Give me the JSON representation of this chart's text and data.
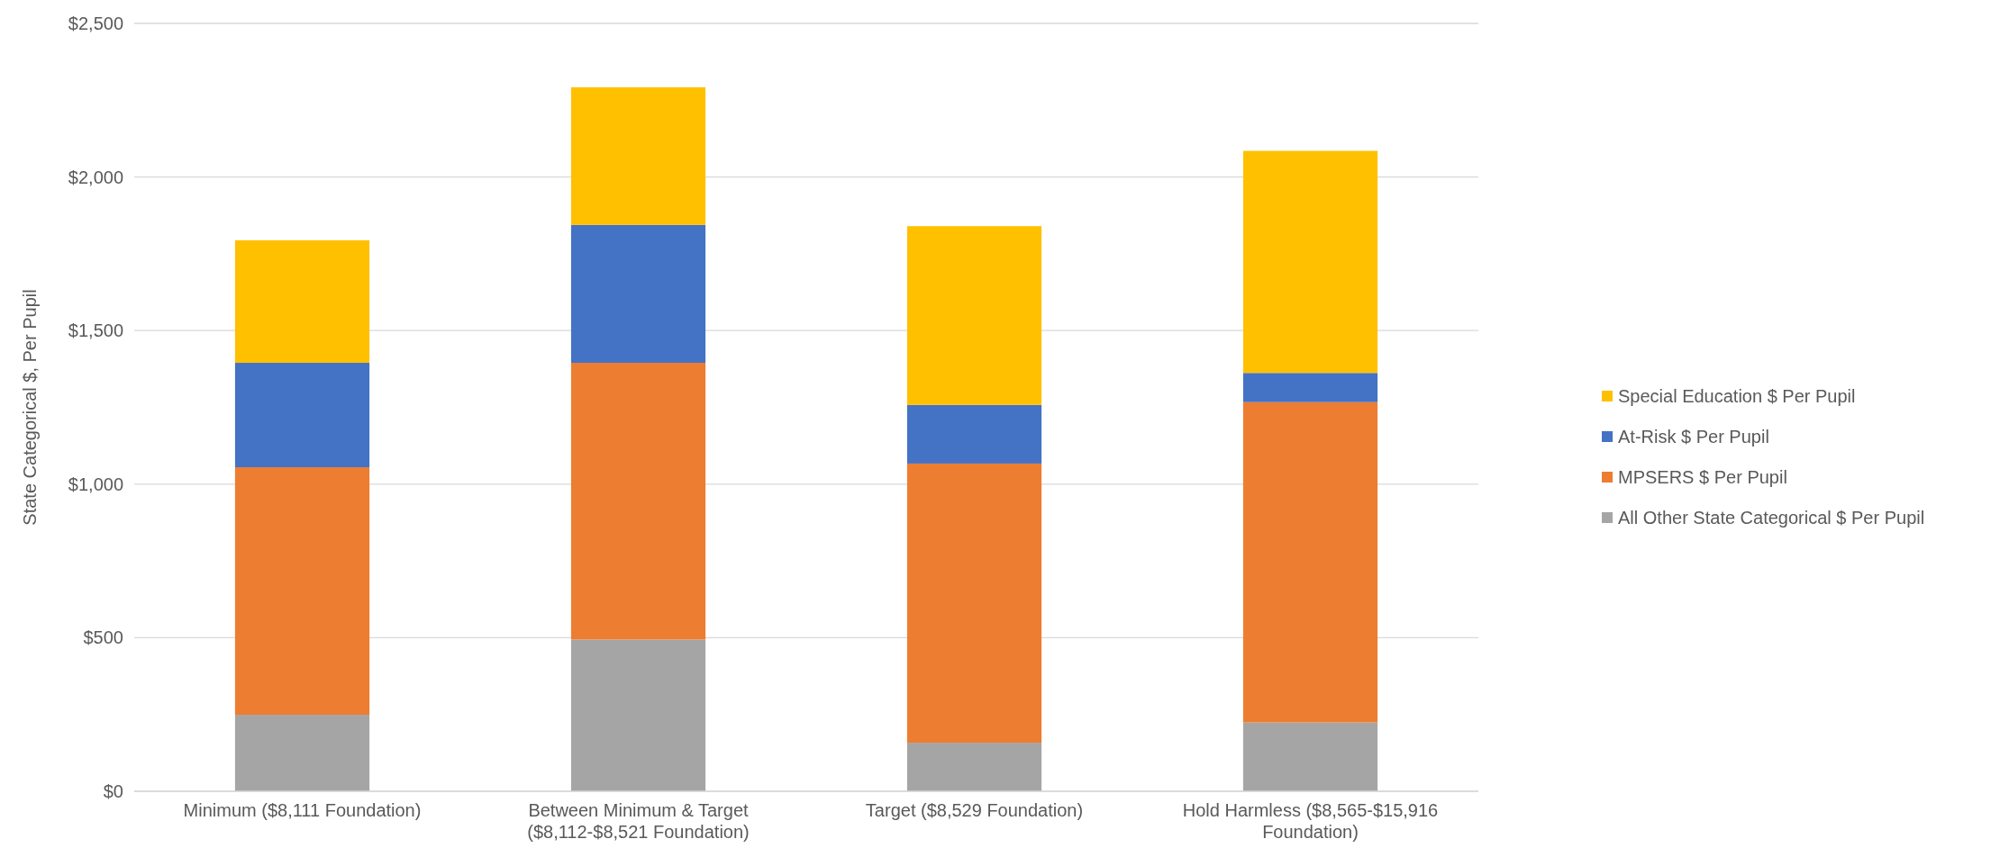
{
  "chart_data": {
    "type": "bar",
    "stacked": true,
    "ylabel": "State Categorical $, Per Pupil",
    "categories": [
      "Minimum ($8,111 Foundation)",
      "Between Minimum & Target ($8,112-$8,521 Foundation)",
      "Target ($8,529 Foundation)",
      "Hold Harmless ($8,565-$15,916 Foundation)"
    ],
    "series": [
      {
        "name": "All Other State Categorical $ Per Pupil",
        "color": "#a5a5a5",
        "values": [
          249,
          494,
          158,
          224
        ]
      },
      {
        "name": "MPSERS $ Per Pupil",
        "color": "#ed7d31",
        "values": [
          806,
          901,
          909,
          1043
        ]
      },
      {
        "name": "At-Risk $ Per Pupil",
        "color": "#4472c4",
        "values": [
          340,
          449,
          191,
          95
        ]
      },
      {
        "name": "Special Education $ Per Pupil",
        "color": "#ffc000",
        "values": [
          399,
          448,
          582,
          723
        ]
      }
    ],
    "ylim": [
      0,
      2500
    ],
    "yticks": [
      {
        "value": 0,
        "label": "$0"
      },
      {
        "value": 500,
        "label": "$500"
      },
      {
        "value": 1000,
        "label": "$1,000"
      },
      {
        "value": 1500,
        "label": "$1,500"
      },
      {
        "value": 2000,
        "label": "$2,000"
      },
      {
        "value": 2500,
        "label": "$2,500"
      }
    ],
    "grid": "y",
    "legend": "right"
  }
}
